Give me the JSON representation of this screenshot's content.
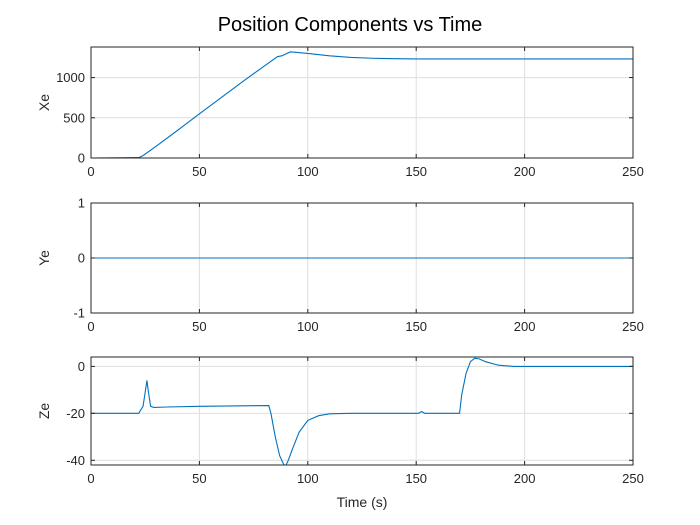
{
  "chart_data": {
    "title": "Position Components vs Time",
    "xlabel": "Time (s)",
    "type": "line",
    "grid": true,
    "color": "#0072bd",
    "panels": [
      {
        "ylabel": "Xe",
        "xlim": [
          0,
          250
        ],
        "ylim": [
          0,
          1380
        ],
        "xticks": [
          0,
          50,
          100,
          150,
          200,
          250
        ],
        "yticks": [
          0,
          500,
          1000
        ],
        "series": [
          {
            "x": [
              0,
              22,
              24,
              30,
              40,
              50,
              60,
              70,
              80,
              86,
              88,
              92,
              100,
              110,
              120,
              130,
              140,
              150,
              170,
              200,
              250
            ],
            "y": [
              0,
              5,
              30,
              145,
              345,
              550,
              750,
              950,
              1145,
              1260,
              1270,
              1320,
              1300,
              1270,
              1250,
              1240,
              1235,
              1232,
              1232,
              1232,
              1232
            ]
          }
        ]
      },
      {
        "ylabel": "Ye",
        "xlim": [
          0,
          250
        ],
        "ylim": [
          -1,
          1
        ],
        "xticks": [
          0,
          50,
          100,
          150,
          200,
          250
        ],
        "yticks": [
          -1,
          0,
          1
        ],
        "series": [
          {
            "x": [
              0,
              250
            ],
            "y": [
              0,
              0
            ]
          }
        ]
      },
      {
        "ylabel": "Ze",
        "xlim": [
          0,
          250
        ],
        "ylim": [
          -42,
          4
        ],
        "xticks": [
          0,
          50,
          100,
          150,
          200,
          250
        ],
        "yticks": [
          -40,
          -20,
          0
        ],
        "series": [
          {
            "x": [
              0,
              22,
              24,
              25,
              25.8,
              26.5,
              27.5,
              29,
              35,
              50,
              70,
              82,
              83,
              85,
              87,
              89,
              90,
              91,
              93,
              96,
              100,
              105,
              110,
              120,
              140,
              150,
              151,
              152.5,
              154,
              156,
              165,
              170,
              171,
              173,
              175,
              177,
              179,
              182,
              188,
              195,
              200,
              250
            ],
            "y": [
              -20,
              -20,
              -17,
              -11,
              -6,
              -11,
              -17,
              -17.5,
              -17.3,
              -17,
              -16.8,
              -16.7,
              -20,
              -30,
              -38,
              -42,
              -42,
              -40,
              -35,
              -28,
              -23,
              -21,
              -20.2,
              -20,
              -20,
              -20,
              -20,
              -19.2,
              -20,
              -20,
              -20,
              -20,
              -12,
              -3,
              2,
              3.5,
              3.2,
              2,
              0.5,
              0,
              0,
              0
            ]
          }
        ]
      }
    ]
  }
}
